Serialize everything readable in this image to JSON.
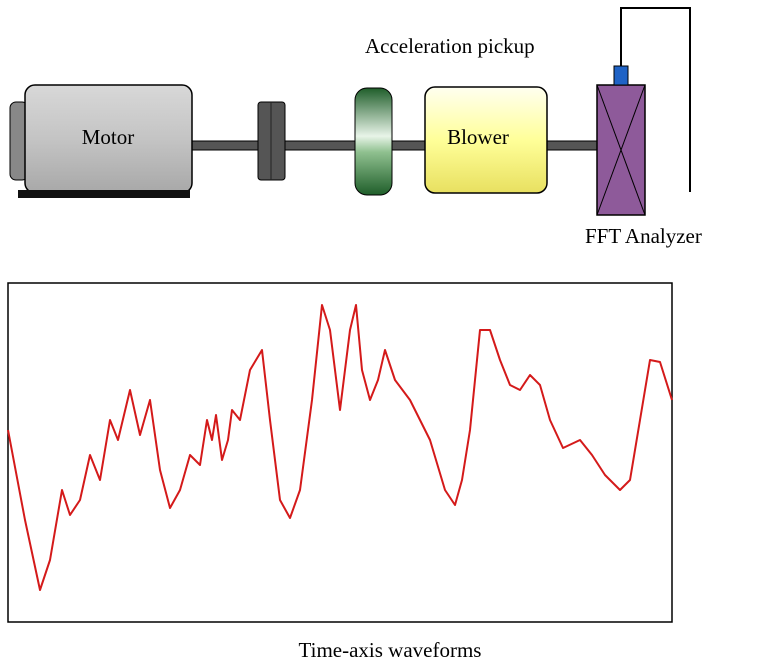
{
  "diagram": {
    "pickup_label": "Acceleration pickup",
    "motor_label": "Motor",
    "blower_label": "Blower",
    "analyzer_label": "FFT Analyzer",
    "waveform_label": "Time-axis waveforms"
  }
}
